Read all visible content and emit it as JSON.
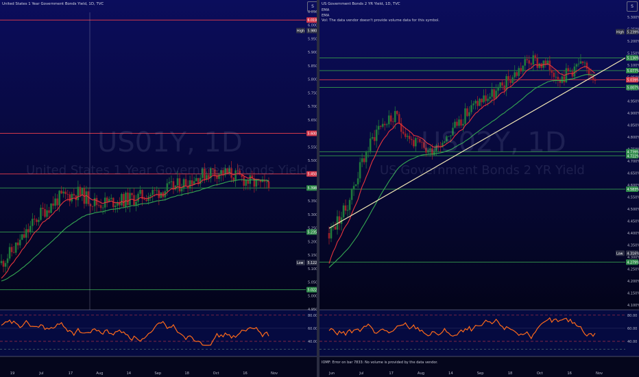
{
  "theme": {
    "bg_top": "#0b0d5c",
    "bg_bottom": "#03041a",
    "up": "#1f7a3b",
    "down": "#9e1f29",
    "ema_fast": "#e8353d",
    "ema_slow": "#35a852",
    "rsi_line": "#ff6a1a",
    "red_level": "#d2384a",
    "green_level": "#2f8a4a",
    "trendline": "#f4e9b6"
  },
  "left": {
    "title": "United States 1 Year Government Bonds Yield, 1D, TVC",
    "settings_label": "S",
    "watermark_symbol": "US01Y, 1D",
    "watermark_name": "United States 1 Year Government Bonds Yield",
    "axis_ticks": [
      "6.050%",
      "6.000%",
      "5.950%",
      "5.900%",
      "5.850%",
      "5.800%",
      "5.750%",
      "5.700%",
      "5.650%",
      "5.600%",
      "5.550%",
      "5.500%",
      "5.450%",
      "5.400%",
      "5.350%",
      "5.300%",
      "5.250%",
      "5.200%",
      "5.150%",
      "5.100%",
      "5.050%",
      "5.000%",
      "4.950%"
    ],
    "price_labels": [
      {
        "value": 6.019,
        "text": "6.019%",
        "kind": "red"
      },
      {
        "value": 5.6,
        "text": "5.600%",
        "kind": "red"
      },
      {
        "value": 5.45,
        "text": "5.450%",
        "kind": "red"
      },
      {
        "value": 5.398,
        "text": "5.398%",
        "kind": "green"
      },
      {
        "value": 5.235,
        "text": "5.235%",
        "kind": "green"
      },
      {
        "value": 5.022,
        "text": "5.022%",
        "kind": "green"
      }
    ],
    "high": {
      "label": "High",
      "value": 5.98,
      "text": "5.980%"
    },
    "low": {
      "label": "Low",
      "value": 5.122,
      "text": "5.122%"
    },
    "rsi_ticks": [
      "80.00",
      "60.00",
      "40.00"
    ],
    "x_ticks": [
      "19",
      "Jul",
      "17",
      "Aug",
      "14",
      "Sep",
      "18",
      "Oct",
      "16",
      "Nov"
    ]
  },
  "right": {
    "title": "US Government Bonds 2 YR Yield, 1D, TVC",
    "legend": [
      "EMA",
      "EMA",
      "Vol: The data vendor doesn't provide volume data for this symbol."
    ],
    "settings_label": "S",
    "watermark_symbol": "US02Y, 1D",
    "watermark_name": "US Government Bonds 2 YR Yield",
    "axis_ticks": [
      "5.300%",
      "5.250%",
      "5.200%",
      "5.150%",
      "5.100%",
      "5.050%",
      "5.000%",
      "4.950%",
      "4.900%",
      "4.850%",
      "4.800%",
      "4.750%",
      "4.700%",
      "4.650%",
      "4.600%",
      "4.550%",
      "4.500%",
      "4.450%",
      "4.400%",
      "4.350%",
      "4.300%",
      "4.250%",
      "4.200%",
      "4.150%",
      "4.100%"
    ],
    "price_labels": [
      {
        "value": 5.13,
        "text": "5.130%",
        "kind": "green"
      },
      {
        "value": 5.077,
        "text": "5.077%",
        "kind": "green"
      },
      {
        "value": 5.039,
        "text": "5.039%",
        "kind": "red"
      },
      {
        "value": 5.007,
        "text": "5.007%",
        "kind": "green"
      },
      {
        "value": 4.739,
        "text": "4.739%",
        "kind": "green"
      },
      {
        "value": 4.722,
        "text": "4.722%",
        "kind": "green"
      },
      {
        "value": 4.583,
        "text": "4.583%",
        "kind": "green"
      },
      {
        "value": 4.279,
        "text": "4.279%",
        "kind": "green"
      }
    ],
    "high": {
      "label": "High",
      "value": 5.239,
      "text": "5.239%"
    },
    "low": {
      "label": "Low",
      "value": 4.316,
      "text": "4.316%"
    },
    "rsi_ticks": [
      "80.00",
      "60.00",
      "40.00"
    ],
    "error_text": "IOMF: Error on bar 7833: No volume is provided by the data vendor.",
    "x_ticks": [
      "Jun",
      "Jul",
      "17",
      "Aug",
      "14",
      "Sep",
      "18",
      "Oct",
      "16",
      "Nov"
    ]
  },
  "chart_data": [
    {
      "type": "candlestick",
      "title": "United States 1 Year Government Bonds Yield, 1D, TVC",
      "ylim": [
        4.95,
        6.05
      ],
      "x_categories": [
        "19",
        "Jul",
        "17",
        "Aug",
        "14",
        "Sep",
        "18",
        "Oct",
        "16",
        "Nov"
      ],
      "close_path": [
        {
          "x": "19",
          "y": 5.15
        },
        {
          "x": "Jul",
          "y": 5.37
        },
        {
          "x": "17",
          "y": 5.34
        },
        {
          "x": "Aug",
          "y": 5.37
        },
        {
          "x": "14",
          "y": 5.4
        },
        {
          "x": "Sep",
          "y": 5.43
        },
        {
          "x": "18",
          "y": 5.48
        },
        {
          "x": "Oct",
          "y": 5.45
        },
        {
          "x": "16",
          "y": 5.4
        }
      ],
      "horizontal_levels": [
        6.019,
        5.6,
        5.45,
        5.398,
        5.235,
        5.022
      ],
      "high": 5.98,
      "low": 5.122,
      "rsi": {
        "ylim": [
          20,
          85
        ],
        "guides": [
          80,
          60,
          40
        ]
      }
    },
    {
      "type": "candlestick",
      "title": "US Government Bonds 2 YR Yield, 1D, TVC",
      "ylim": [
        4.1,
        5.3
      ],
      "x_categories": [
        "Jun",
        "Jul",
        "17",
        "Aug",
        "14",
        "Sep",
        "18",
        "Oct",
        "16",
        "Nov"
      ],
      "close_path": [
        {
          "x": "Jun",
          "y": 4.45
        },
        {
          "x": "Jul",
          "y": 4.85
        },
        {
          "x": "17",
          "y": 4.75
        },
        {
          "x": "Aug",
          "y": 4.8
        },
        {
          "x": "14",
          "y": 4.92
        },
        {
          "x": "Sep",
          "y": 4.97
        },
        {
          "x": "18",
          "y": 5.05
        },
        {
          "x": "Oct",
          "y": 5.0
        },
        {
          "x": "16",
          "y": 5.04
        }
      ],
      "horizontal_levels": [
        5.13,
        5.077,
        5.007,
        4.739,
        4.722,
        4.583,
        4.279
      ],
      "trendline": [
        {
          "x": "Jun",
          "y": 4.42
        },
        {
          "x": "Nov",
          "y": 5.12
        }
      ],
      "high": 5.239,
      "low": 4.316,
      "rsi": {
        "ylim": [
          20,
          85
        ],
        "guides": [
          80,
          60,
          40
        ]
      }
    }
  ]
}
